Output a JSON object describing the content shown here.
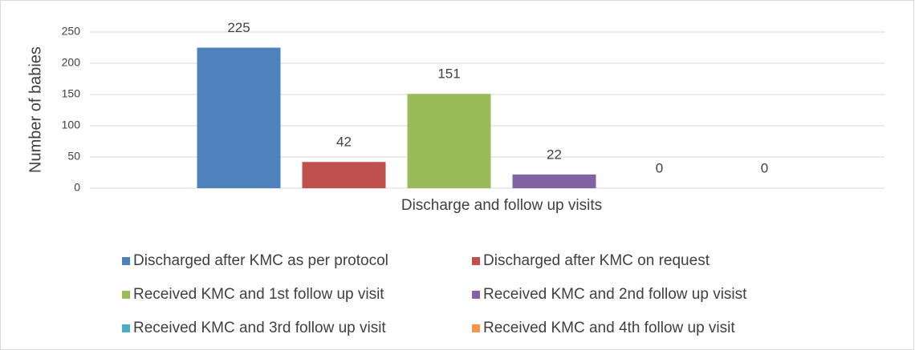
{
  "chart_data": {
    "type": "bar",
    "y_label": "Number of babies",
    "categories": [
      "Discharge and follow up visits"
    ],
    "series": [
      {
        "name": "Discharged after KMC as per protocol",
        "color": "#4f81bd",
        "values": [
          225
        ]
      },
      {
        "name": "Discharged after KMC on request",
        "color": "#c0504d",
        "values": [
          42
        ]
      },
      {
        "name": "Received KMC and 1st follow up visit",
        "color": "#9bbb59",
        "values": [
          151
        ]
      },
      {
        "name": "Received KMC and 2nd follow up visist",
        "color": "#8064a2",
        "values": [
          22
        ]
      },
      {
        "name": "Received KMC and 3rd follow up visit",
        "color": "#4bacc6",
        "values": [
          0
        ]
      },
      {
        "name": "Received KMC and 4th  follow up visit",
        "color": "#f79646",
        "values": [
          0
        ]
      }
    ],
    "ylim": [
      0,
      250
    ],
    "yticks": [
      0,
      50,
      100,
      150,
      200,
      250
    ],
    "grid": true,
    "legend": "bottom"
  }
}
